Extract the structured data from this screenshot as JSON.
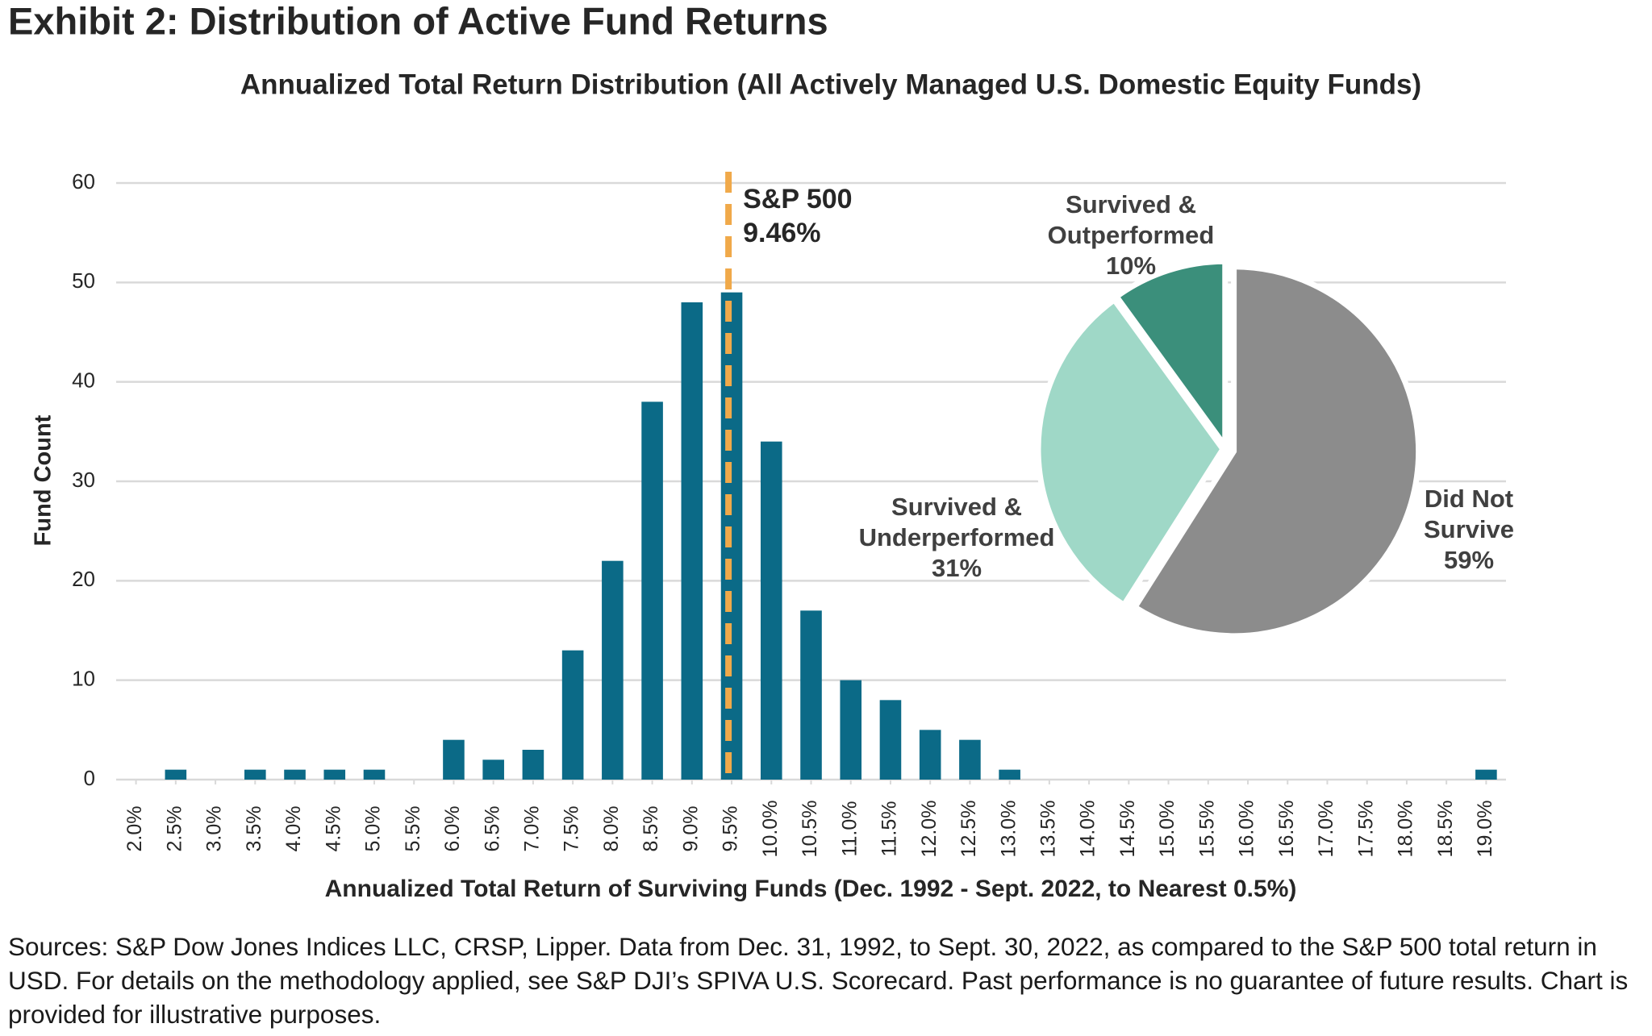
{
  "title": "Exhibit 2: Distribution of Active Fund Returns",
  "chart_data": [
    {
      "type": "bar",
      "title": "Annualized Total Return Distribution (All Actively Managed U.S. Domestic Equity Funds)",
      "x_label": "Annualized Total Return of Surviving Funds (Dec. 1992 - Sept. 2022, to Nearest 0.5%)",
      "y_label": "Fund Count",
      "x": [
        2.0,
        2.5,
        3.0,
        3.5,
        4.0,
        4.5,
        5.0,
        5.5,
        6.0,
        6.5,
        7.0,
        7.5,
        8.0,
        8.5,
        9.0,
        9.5,
        10.0,
        10.5,
        11.0,
        11.5,
        12.0,
        12.5,
        13.0,
        13.5,
        14.0,
        14.5,
        15.0,
        15.5,
        16.0,
        16.5,
        17.0,
        17.5,
        18.0,
        18.5,
        19.0
      ],
      "values": [
        0,
        1,
        0,
        1,
        1,
        1,
        1,
        0,
        4,
        2,
        3,
        13,
        22,
        38,
        48,
        49,
        34,
        17,
        10,
        8,
        5,
        4,
        1,
        0,
        0,
        0,
        0,
        0,
        0,
        0,
        0,
        0,
        0,
        0,
        1
      ],
      "color": "#0b6a87",
      "xlim": [
        1.75,
        19.25
      ],
      "xticks": [
        {
          "value": 2.0,
          "label": "2.0%"
        },
        {
          "value": 2.5,
          "label": "2.5%"
        },
        {
          "value": 3.0,
          "label": "3.0%"
        },
        {
          "value": 3.5,
          "label": "3.5%"
        },
        {
          "value": 4.0,
          "label": "4.0%"
        },
        {
          "value": 4.5,
          "label": "4.5%"
        },
        {
          "value": 5.0,
          "label": "5.0%"
        },
        {
          "value": 5.5,
          "label": "5.5%"
        },
        {
          "value": 6.0,
          "label": "6.0%"
        },
        {
          "value": 6.5,
          "label": "6.5%"
        },
        {
          "value": 7.0,
          "label": "7.0%"
        },
        {
          "value": 7.5,
          "label": "7.5%"
        },
        {
          "value": 8.0,
          "label": "8.0%"
        },
        {
          "value": 8.5,
          "label": "8.5%"
        },
        {
          "value": 9.0,
          "label": "9.0%"
        },
        {
          "value": 9.5,
          "label": "9.5%"
        },
        {
          "value": 10.0,
          "label": "10.0%"
        },
        {
          "value": 10.5,
          "label": "10.5%"
        },
        {
          "value": 11.0,
          "label": "11.0%"
        },
        {
          "value": 11.5,
          "label": "11.5%"
        },
        {
          "value": 12.0,
          "label": "12.0%"
        },
        {
          "value": 12.5,
          "label": "12.5%"
        },
        {
          "value": 13.0,
          "label": "13.0%"
        },
        {
          "value": 13.5,
          "label": "13.5%"
        },
        {
          "value": 14.0,
          "label": "14.0%"
        },
        {
          "value": 14.5,
          "label": "14.5%"
        },
        {
          "value": 15.0,
          "label": "15.0%"
        },
        {
          "value": 15.5,
          "label": "15.5%"
        },
        {
          "value": 16.0,
          "label": "16.0%"
        },
        {
          "value": 16.5,
          "label": "16.5%"
        },
        {
          "value": 17.0,
          "label": "17.0%"
        },
        {
          "value": 17.5,
          "label": "17.5%"
        },
        {
          "value": 18.0,
          "label": "18.0%"
        },
        {
          "value": 18.5,
          "label": "18.5%"
        },
        {
          "value": 19.0,
          "label": "19.0%"
        }
      ],
      "ylim": [
        0,
        60
      ],
      "yticks": [
        0,
        10,
        20,
        30,
        40,
        50,
        60
      ],
      "grid": true,
      "reference_line": {
        "label": "S&P 500",
        "value": 9.46,
        "value_label": "9.46%",
        "color": "#f0a94a"
      }
    },
    {
      "type": "pie",
      "categories": [
        "Did Not Survive",
        "Survived & Underperformed",
        "Survived & Outperformed"
      ],
      "values": [
        59,
        31,
        10
      ],
      "value_labels": [
        "59%",
        "31%",
        "10%"
      ],
      "colors": [
        "#8c8c8c",
        "#9fd8c7",
        "#3b8f7b"
      ]
    }
  ],
  "source": "Sources: S&P Dow Jones Indices LLC, CRSP, Lipper. Data from Dec. 31, 1992, to Sept. 30, 2022, as compared to the S&P 500 total return in USD. For details on the methodology applied, see S&P DJI’s SPIVA U.S. Scorecard. Past performance is no guarantee of future results. Chart is provided for illustrative purposes."
}
